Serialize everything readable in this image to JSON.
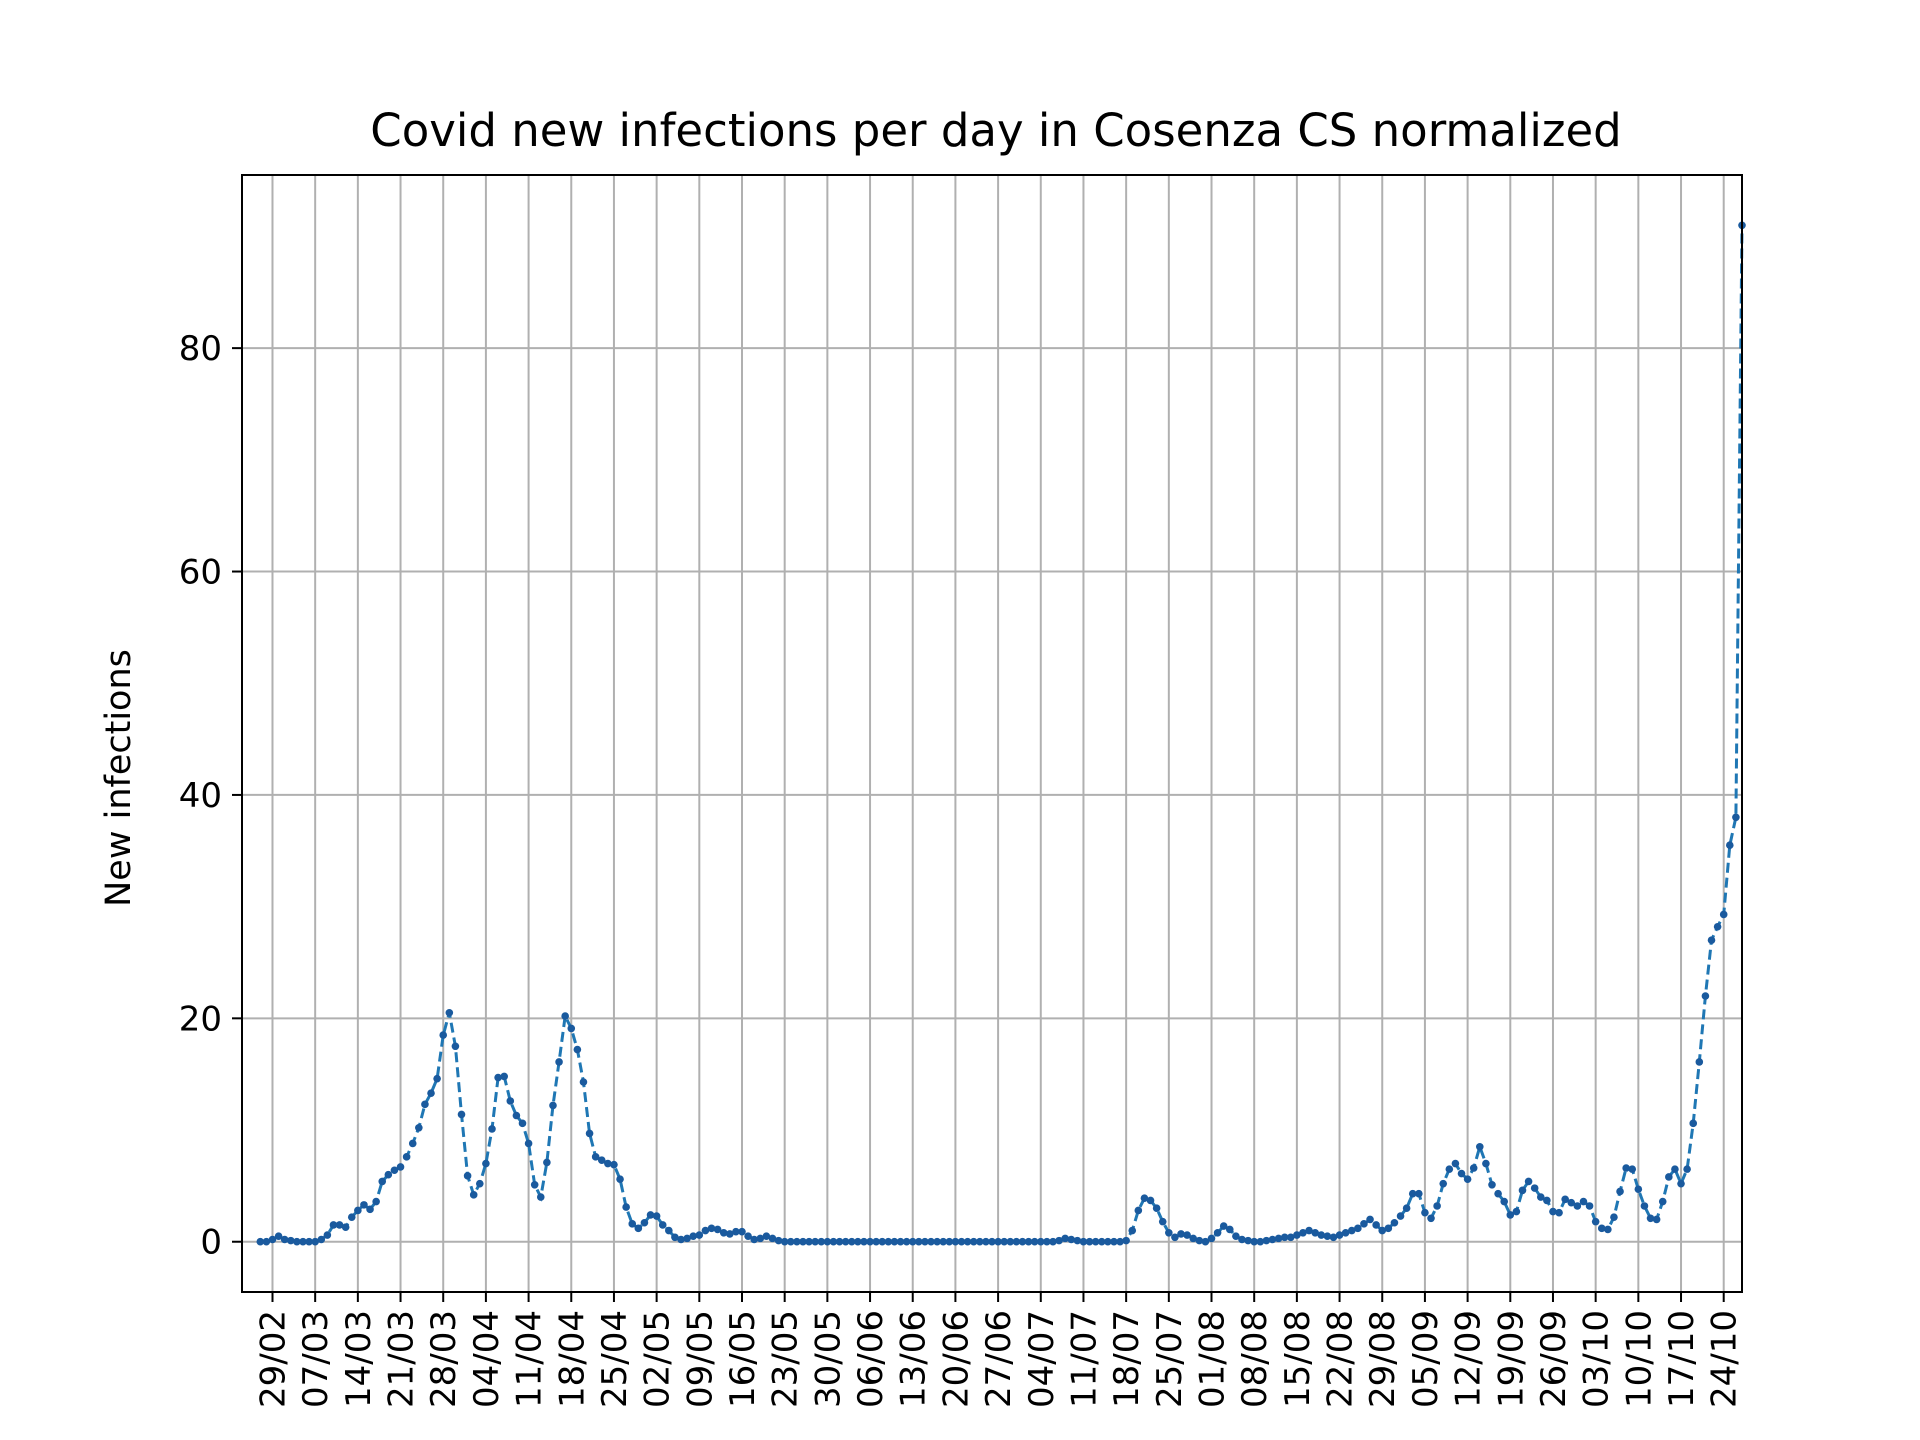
{
  "chart_data": {
    "type": "line",
    "title": "Covid new infections per day in Cosenza CS normalized",
    "xlabel": "",
    "ylabel": "New infections",
    "grid": true,
    "legend": "none",
    "line_style": "dashed",
    "marker": "dot",
    "series_color": "#1f77b4",
    "marker_color": "#1a5a9e",
    "xlim": [
      -3,
      243
    ],
    "ylim": [
      -4.5,
      95.5
    ],
    "yticks": [
      0,
      20,
      40,
      60,
      80
    ],
    "xtick_positions": [
      2,
      9,
      16,
      23,
      30,
      37,
      44,
      51,
      58,
      65,
      72,
      79,
      86,
      93,
      100,
      107,
      114,
      121,
      128,
      135,
      142,
      149,
      156,
      163,
      170,
      177,
      184,
      191,
      198,
      205,
      212,
      219,
      226,
      233,
      240
    ],
    "xtick_labels": [
      "29/02",
      "07/03",
      "14/03",
      "21/03",
      "28/03",
      "04/04",
      "11/04",
      "18/04",
      "25/04",
      "02/05",
      "09/05",
      "16/05",
      "23/05",
      "30/05",
      "06/06",
      "13/06",
      "20/06",
      "27/06",
      "04/07",
      "11/07",
      "18/07",
      "25/07",
      "01/08",
      "08/08",
      "15/08",
      "22/08",
      "29/08",
      "05/09",
      "12/09",
      "19/09",
      "26/09",
      "03/10",
      "10/10",
      "17/10",
      "24/10"
    ],
    "x_start": 0,
    "values": [
      0.0,
      0.0,
      0.2,
      0.5,
      0.2,
      0.1,
      0.0,
      0.0,
      0.0,
      0.0,
      0.2,
      0.6,
      1.5,
      1.5,
      1.3,
      2.2,
      2.8,
      3.3,
      2.9,
      3.6,
      5.4,
      6.0,
      6.4,
      6.7,
      7.6,
      8.8,
      10.2,
      12.3,
      13.3,
      14.6,
      18.5,
      20.5,
      17.5,
      11.4,
      5.9,
      4.2,
      5.2,
      7.0,
      10.1,
      14.7,
      14.8,
      12.6,
      11.3,
      10.6,
      8.8,
      5.1,
      4.0,
      7.1,
      12.2,
      16.1,
      20.2,
      19.1,
      17.2,
      14.3,
      9.7,
      7.6,
      7.3,
      7.0,
      6.9,
      5.6,
      3.1,
      1.6,
      1.2,
      1.7,
      2.4,
      2.3,
      1.5,
      1.0,
      0.4,
      0.2,
      0.3,
      0.5,
      0.6,
      1.0,
      1.2,
      1.1,
      0.8,
      0.7,
      0.9,
      0.9,
      0.5,
      0.2,
      0.3,
      0.5,
      0.3,
      0.1,
      0.0,
      0.0,
      0.0,
      0.0,
      0.0,
      0.0,
      0.0,
      0.0,
      0.0,
      0.0,
      0.0,
      0.0,
      0.0,
      0.0,
      0.0,
      0.0,
      0.0,
      0.0,
      0.0,
      0.0,
      0.0,
      0.0,
      0.0,
      0.0,
      0.0,
      0.0,
      0.0,
      0.0,
      0.0,
      0.0,
      0.0,
      0.0,
      0.0,
      0.0,
      0.0,
      0.0,
      0.0,
      0.0,
      0.0,
      0.0,
      0.0,
      0.0,
      0.0,
      0.0,
      0.0,
      0.1,
      0.3,
      0.2,
      0.1,
      0.0,
      0.0,
      0.0,
      0.0,
      0.0,
      0.0,
      0.0,
      0.1,
      1.0,
      2.8,
      3.9,
      3.7,
      3.0,
      1.8,
      0.8,
      0.4,
      0.7,
      0.6,
      0.3,
      0.1,
      0.0,
      0.3,
      0.8,
      1.4,
      1.1,
      0.5,
      0.2,
      0.1,
      0.0,
      0.0,
      0.1,
      0.2,
      0.3,
      0.4,
      0.4,
      0.6,
      0.8,
      1.0,
      0.8,
      0.6,
      0.5,
      0.4,
      0.6,
      0.8,
      1.0,
      1.2,
      1.6,
      2.0,
      1.5,
      1.0,
      1.2,
      1.7,
      2.3,
      3.0,
      4.3,
      4.3,
      2.6,
      2.1,
      3.2,
      5.2,
      6.5,
      7.0,
      6.1,
      5.6,
      6.6,
      8.5,
      7.0,
      5.1,
      4.3,
      3.6,
      2.4,
      2.7,
      4.6,
      5.4,
      4.8,
      4.0,
      3.7,
      2.7,
      2.6,
      3.8,
      3.5,
      3.2,
      3.6,
      3.2,
      1.8,
      1.2,
      1.1,
      2.2,
      4.5,
      6.6,
      6.5,
      4.7,
      3.2,
      2.1,
      2.0,
      3.6,
      5.8,
      6.5,
      5.2,
      6.5,
      10.6,
      16.1,
      22.0,
      27.0,
      28.2,
      29.3,
      35.5,
      38.0,
      91.0
    ]
  }
}
